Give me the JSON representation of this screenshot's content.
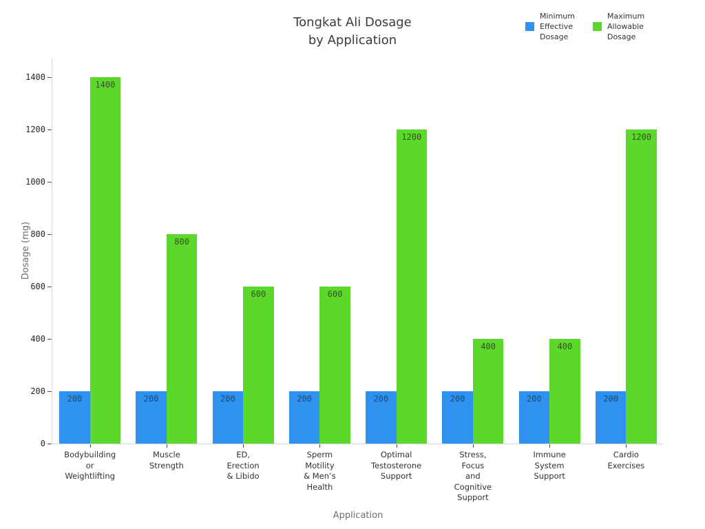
{
  "title": "Tongkat Ali Dosage\nby Application",
  "legend": {
    "items": [
      {
        "label": "Minimum\nEffective\nDosage",
        "color": "#2f92f0"
      },
      {
        "label": "Maximum\nAllowable\nDosage",
        "color": "#5cd82c"
      }
    ]
  },
  "chart_data": {
    "type": "bar",
    "title": "Tongkat Ali Dosage by Application",
    "xlabel": "Application",
    "ylabel": "Dosage (mg)",
    "ylim": [
      0,
      1400
    ],
    "yticks": [
      0,
      200,
      400,
      600,
      800,
      1000,
      1200,
      1400
    ],
    "grid": false,
    "legend_position": "top-right",
    "background": "#ffffff",
    "categories": [
      [
        "Bodybuilding",
        "or",
        "Weightlifting"
      ],
      [
        "Muscle",
        "Strength"
      ],
      [
        "ED,",
        "Erection",
        "& Libido"
      ],
      [
        "Sperm",
        "Motility",
        "& Men’s",
        "Health"
      ],
      [
        "Optimal",
        "Testosterone",
        "Support"
      ],
      [
        "Stress,",
        "Focus",
        "and",
        "Cognitive",
        "Support"
      ],
      [
        "Immune",
        "System",
        "Support"
      ],
      [
        "Cardio",
        "Exercises"
      ]
    ],
    "series": [
      {
        "name": "Minimum Effective Dosage",
        "color": "#2f92f0",
        "label_color": "#1b4b74",
        "values": [
          200,
          200,
          200,
          200,
          200,
          200,
          200,
          200
        ]
      },
      {
        "name": "Maximum Allowable Dosage",
        "color": "#5cd82c",
        "label_color": "#33531a",
        "values": [
          1400,
          800,
          600,
          600,
          1200,
          400,
          400,
          1200
        ]
      }
    ]
  }
}
